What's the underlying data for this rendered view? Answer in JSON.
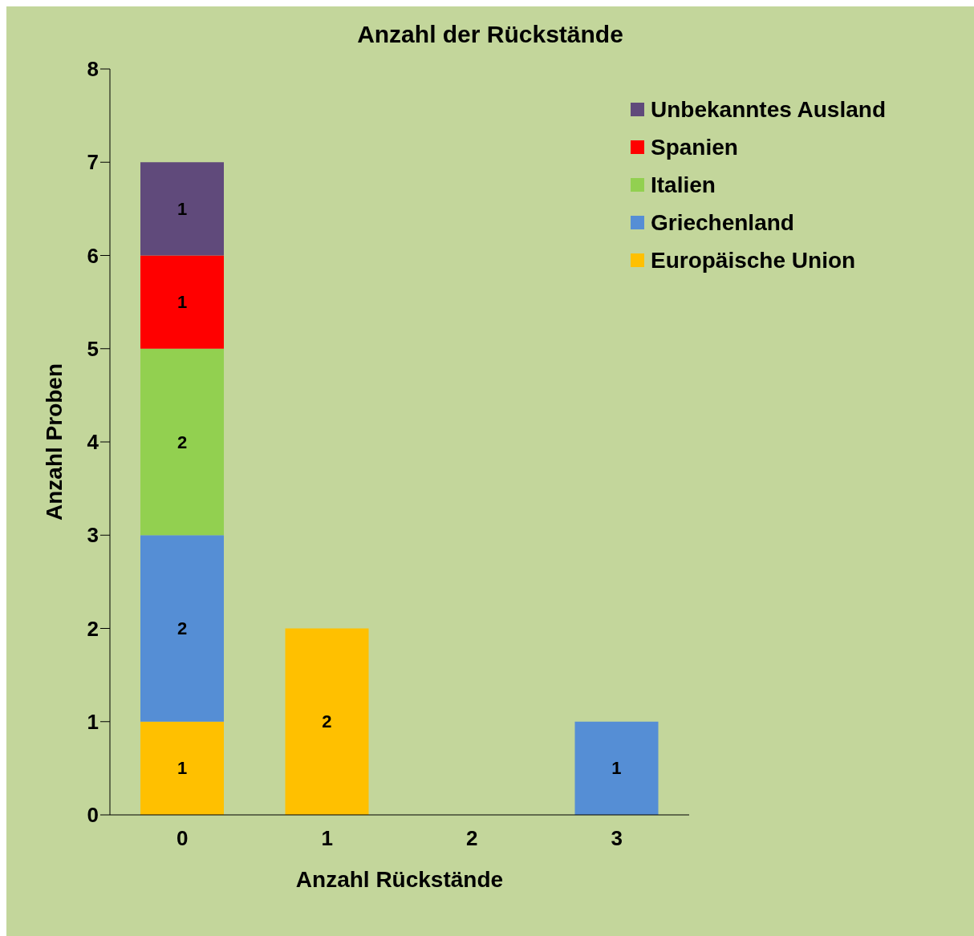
{
  "chart_data": {
    "type": "bar",
    "title": "Anzahl der Rückstände",
    "xlabel": "Anzahl Rückstände",
    "ylabel": "Anzahl Proben",
    "categories": [
      "0",
      "1",
      "2",
      "3"
    ],
    "series": [
      {
        "name": "Europäische Union",
        "color": "#ffc000",
        "values": [
          1,
          2,
          null,
          null
        ]
      },
      {
        "name": "Griechenland",
        "color": "#558ed5",
        "values": [
          2,
          null,
          null,
          1
        ]
      },
      {
        "name": "Italien",
        "color": "#92d050",
        "values": [
          2,
          null,
          null,
          null
        ]
      },
      {
        "name": "Spanien",
        "color": "#ff0000",
        "values": [
          1,
          null,
          null,
          null
        ]
      },
      {
        "name": "Unbekanntes Ausland",
        "color": "#604a7b",
        "values": [
          1,
          null,
          null,
          null
        ]
      }
    ],
    "stacked": true,
    "ylim": [
      0,
      8
    ],
    "yticks": [
      0,
      1,
      2,
      3,
      4,
      5,
      6,
      7,
      8
    ],
    "grid": false,
    "legend": "top right",
    "data_labels": true
  }
}
